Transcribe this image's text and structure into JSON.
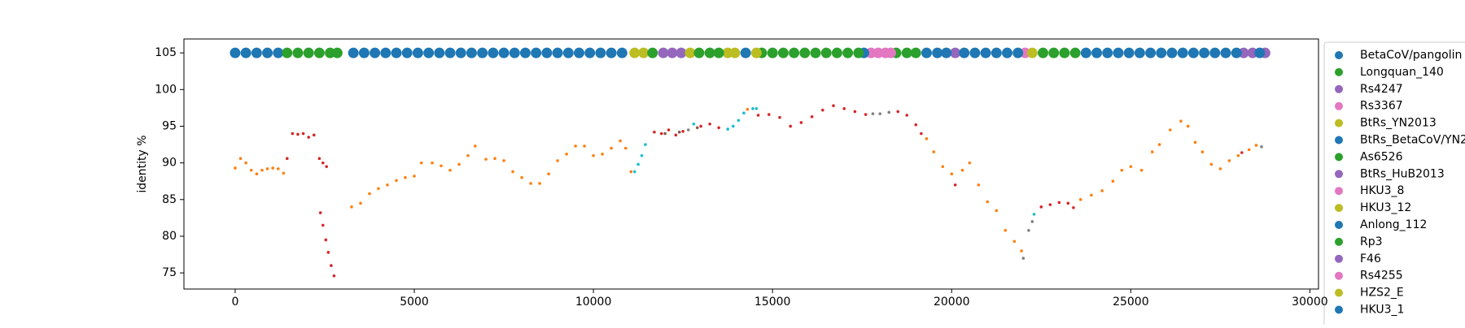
{
  "chart_data": {
    "type": "scatter",
    "ylabel": "identity %",
    "xlim": [
      -1430,
      30240
    ],
    "ylim": [
      72.8,
      106.9
    ],
    "xticks": [
      0,
      5000,
      10000,
      15000,
      20000,
      25000,
      30000
    ],
    "yticks": [
      75,
      80,
      85,
      90,
      95,
      100,
      105
    ],
    "series": [
      {
        "name": "BetaCoV/pangolin",
        "color": "#1f77b4",
        "x": [
          0,
          300,
          600,
          900,
          1200,
          3300,
          3600,
          3900,
          4200,
          4500,
          4800,
          5100,
          5400,
          5700,
          6000,
          6300,
          6600,
          6900,
          7200,
          7500,
          7800,
          8100,
          8400,
          8700,
          9000,
          9300,
          9600,
          9900,
          10200,
          10500,
          10800
        ],
        "values": [
          105,
          105,
          105,
          105,
          105,
          105,
          105,
          105,
          105,
          105,
          105,
          105,
          105,
          105,
          105,
          105,
          105,
          105,
          105,
          105,
          105,
          105,
          105,
          105,
          105,
          105,
          105,
          105,
          105,
          105,
          105
        ]
      },
      {
        "name": "Longquan_140",
        "color": "#2ca02c",
        "x": [
          1450,
          1750,
          2050,
          2350,
          2650,
          2850
        ],
        "values": [
          105,
          105,
          105,
          105,
          105,
          105
        ]
      },
      {
        "name": "Rs4247",
        "color": "#9467bd",
        "x": [
          11950,
          12200,
          12450
        ],
        "values": [
          105,
          105,
          105
        ]
      },
      {
        "name": "Rs3367",
        "color": "#e377c2",
        "x": [
          17750,
          17950
        ],
        "values": [
          105,
          105
        ]
      },
      {
        "name": "BtRs_YN2013",
        "color": "#bcbd22",
        "x": [
          11150,
          11400
        ],
        "values": [
          105,
          105
        ]
      },
      {
        "name": "BtRs_BetaCoV/YN2",
        "color": "#1f77b4",
        "x": [
          17550
        ],
        "values": [
          105
        ]
      },
      {
        "name": "As6526",
        "color": "#2ca02c",
        "x": [
          14700,
          15000,
          15300,
          15600,
          15900,
          16200,
          16500,
          16800,
          17100,
          17400,
          18450,
          18750,
          19000
        ],
        "values": [
          105,
          105,
          105,
          105,
          105,
          105,
          105,
          105,
          105,
          105,
          105,
          105,
          105
        ]
      },
      {
        "name": "BtRs_HuB2013",
        "color": "#9467bd",
        "x": [
          20100
        ],
        "values": [
          105
        ]
      },
      {
        "name": "HKU3_8",
        "color": "#e377c2",
        "x": [
          22050
        ],
        "values": [
          105
        ]
      },
      {
        "name": "HKU3_12",
        "color": "#bcbd22",
        "x": [
          12700,
          13750,
          13950
        ],
        "values": [
          105,
          105,
          105
        ]
      },
      {
        "name": "Anlong_112",
        "color": "#1f77b4",
        "x": [
          19300,
          19600,
          19850,
          20350,
          20650,
          20950,
          21250,
          21550,
          21850
        ],
        "values": [
          105,
          105,
          105,
          105,
          105,
          105,
          105,
          105,
          105
        ]
      },
      {
        "name": "Rp3",
        "color": "#2ca02c",
        "x": [
          11650,
          12950,
          13250,
          13500,
          22550,
          22850,
          23150,
          23450
        ],
        "values": [
          105,
          105,
          105,
          105,
          105,
          105,
          105,
          105
        ]
      },
      {
        "name": "F46",
        "color": "#9467bd",
        "x": [
          28150,
          28400,
          28750
        ],
        "values": [
          105,
          105,
          105
        ]
      },
      {
        "name": "Rs4255",
        "color": "#e377c2",
        "x": [
          18150,
          18300
        ],
        "values": [
          105,
          105
        ]
      },
      {
        "name": "HZS2_E",
        "color": "#bcbd22",
        "x": [
          14550,
          22250
        ],
        "values": [
          105,
          105
        ]
      },
      {
        "name": "HKU3_1",
        "color": "#1f77b4",
        "x": [
          14250,
          23750,
          24050,
          24350,
          24650,
          24950,
          25250,
          25550,
          25850,
          26150,
          26450,
          26750,
          27050,
          27350,
          27650,
          27950,
          28600
        ],
        "values": [
          105,
          105,
          105,
          105,
          105,
          105,
          105,
          105,
          105,
          105,
          105,
          105,
          105,
          105,
          105,
          105,
          105
        ]
      },
      {
        "color": "#ff7f0e",
        "x": [
          0,
          150,
          300,
          450,
          600,
          750,
          900,
          1050,
          1200,
          1350,
          3250,
          3500,
          3750,
          4000,
          4250,
          4500,
          4750,
          5000,
          5200,
          5500,
          5750,
          6000,
          6250,
          6500,
          6700,
          7000,
          7250,
          7500,
          7750,
          8000,
          8250,
          8500,
          8750,
          9000,
          9250,
          9500,
          9750,
          10000,
          10250,
          10500,
          10750,
          10900,
          11050,
          14300,
          19300,
          19500,
          19750,
          20000,
          20300,
          20500,
          20750,
          21000,
          21250,
          21500,
          21750,
          21950,
          23600,
          23900,
          24200,
          24500,
          24750,
          25000,
          25300,
          25600,
          25800,
          26100,
          26400,
          26600,
          26800,
          27000,
          27250,
          27500,
          27750,
          28000,
          28300,
          28500
        ],
        "values": [
          89.3,
          90.6,
          90.0,
          89.0,
          88.5,
          89.0,
          89.2,
          89.3,
          89.2,
          88.6,
          84.0,
          84.5,
          85.8,
          86.5,
          87.0,
          87.6,
          88.0,
          88.2,
          90.0,
          90.0,
          89.6,
          89.0,
          89.8,
          91.0,
          92.3,
          90.5,
          90.6,
          90.3,
          88.8,
          88.0,
          87.2,
          87.2,
          88.5,
          90.3,
          91.2,
          92.3,
          92.3,
          91.0,
          91.2,
          92.0,
          93.0,
          92.0,
          88.8,
          97.3,
          93.3,
          91.5,
          89.5,
          88.5,
          89.0,
          90.0,
          87.0,
          84.7,
          83.5,
          80.8,
          79.3,
          78.0,
          85.0,
          85.6,
          86.2,
          87.5,
          89.0,
          89.5,
          89.0,
          91.5,
          92.5,
          94.5,
          95.7,
          95.0,
          92.8,
          91.5,
          89.8,
          89.2,
          90.3,
          91.0,
          91.8,
          92.4
        ]
      },
      {
        "color": "#d62728",
        "x": [
          1450,
          1600,
          1750,
          1900,
          2050,
          2200,
          2350,
          2450,
          2550,
          2380,
          2450,
          2530,
          2600,
          2680,
          2760,
          11700,
          11900,
          12100,
          12300,
          12500,
          13000,
          13250,
          13500,
          14600,
          14900,
          15200,
          15500,
          15800,
          16100,
          16400,
          16700,
          17000,
          17300,
          17600,
          18500,
          18750,
          19000,
          19150,
          20100,
          22500,
          22750,
          23000,
          23250,
          23400,
          28100
        ],
        "values": [
          90.6,
          94.0,
          93.9,
          94.0,
          93.5,
          93.8,
          90.6,
          90.0,
          89.5,
          83.2,
          81.5,
          79.5,
          77.8,
          76.0,
          74.6,
          94.2,
          94.0,
          94.5,
          93.8,
          94.3,
          95.0,
          95.3,
          94.8,
          96.5,
          96.6,
          96.2,
          95.0,
          95.5,
          96.3,
          97.2,
          97.8,
          97.4,
          97.0,
          96.6,
          97.0,
          96.5,
          95.2,
          94.0,
          87.0,
          84.0,
          84.3,
          84.6,
          84.5,
          83.9,
          91.4
        ]
      },
      {
        "color": "#17becf",
        "x": [
          11150,
          11250,
          11350,
          11450,
          12800,
          13750,
          13900,
          14050,
          14200,
          14450,
          14550,
          22300
        ],
        "values": [
          88.8,
          89.8,
          91.0,
          92.5,
          95.3,
          94.6,
          95.0,
          95.8,
          96.8,
          97.4,
          97.4,
          83.0
        ]
      },
      {
        "color": "#7f7f7f",
        "x": [
          17800,
          18000,
          18250,
          22000,
          22150,
          22250,
          12650,
          28650
        ],
        "values": [
          96.7,
          96.7,
          96.9,
          77.0,
          80.8,
          82.0,
          94.5,
          92.2
        ]
      },
      {
        "color": "#8c564b",
        "x": [
          12000,
          12400,
          12900
        ],
        "values": [
          94.0,
          94.2,
          94.8
        ]
      }
    ]
  }
}
